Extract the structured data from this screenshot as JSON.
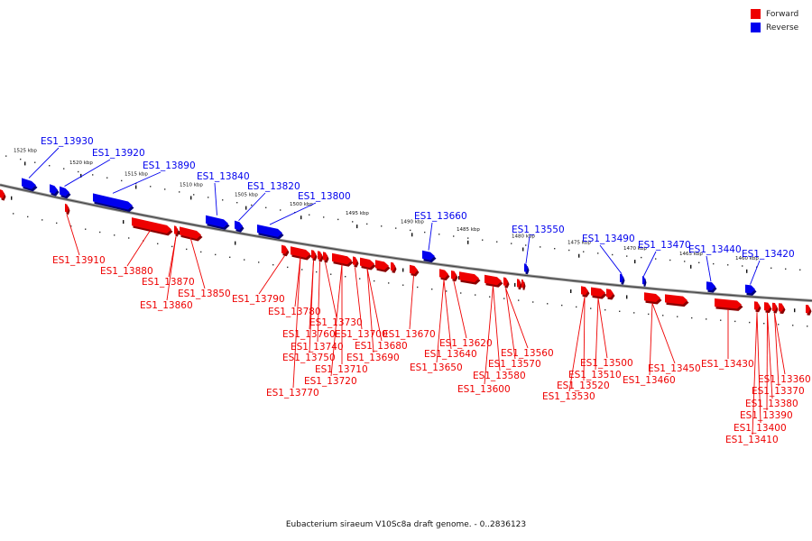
{
  "caption": "Eubacterium siraeum V10Sc8a draft genome. - 0..2836123",
  "legend": {
    "forward": {
      "label": "Forward",
      "color": "#ee0000"
    },
    "reverse": {
      "label": "Reverse",
      "color": "#0000ee"
    }
  },
  "scale_ticks": [
    "1525 kbp",
    "1520 kbp",
    "1515 kbp",
    "1510 kbp",
    "1505 kbp",
    "1500 kbp",
    "1495 kbp",
    "1490 kbp",
    "1485 kbp",
    "1480 kbp",
    "1475 kbp",
    "1470 kbp",
    "1465 kbp",
    "1460 kbp"
  ],
  "reverse_genes": [
    "ES1_13930",
    "ES1_13920",
    "ES1_13890",
    "ES1_13840",
    "ES1_13820",
    "ES1_13800",
    "ES1_13660",
    "ES1_13550",
    "ES1_13490",
    "ES1_13470",
    "ES1_13440",
    "ES1_13420"
  ],
  "forward_genes": [
    "ES1_13910",
    "ES1_13880",
    "ES1_13870",
    "ES1_13850",
    "ES1_13860",
    "ES1_13790",
    "ES1_13780",
    "ES1_13730",
    "ES1_13760",
    "ES1_13740",
    "ES1_13750",
    "ES1_13770",
    "ES1_13700",
    "ES1_13710",
    "ES1_13720",
    "ES1_13680",
    "ES1_13690",
    "ES1_13670",
    "ES1_13620",
    "ES1_13640",
    "ES1_13650",
    "ES1_13560",
    "ES1_13570",
    "ES1_13580",
    "ES1_13600",
    "ES1_13500",
    "ES1_13510",
    "ES1_13520",
    "ES1_13530",
    "ES1_13450",
    "ES1_13460",
    "ES1_13430",
    "ES1_13360",
    "ES1_13370",
    "ES1_13380",
    "ES1_13390",
    "ES1_13400",
    "ES1_13410"
  ]
}
